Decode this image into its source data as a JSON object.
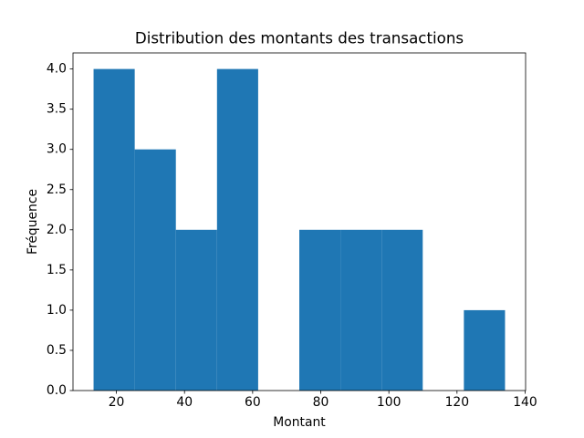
{
  "chart_data": {
    "type": "histogram",
    "title": "Distribution des montants des transactions",
    "xlabel": "Montant",
    "ylabel": "Fréquence",
    "bins": [
      13.3,
      25.38,
      37.46,
      49.54,
      61.62,
      73.7,
      85.78,
      97.86,
      109.94,
      122.02,
      134.1
    ],
    "counts": [
      4,
      3,
      2,
      4,
      0,
      2,
      2,
      2,
      0,
      1
    ],
    "color": "#1f77b4",
    "xlim": [
      7.26,
      140.14
    ],
    "xticks": [
      20,
      40,
      60,
      80,
      100,
      120,
      140
    ],
    "ylim": [
      0,
      4.2
    ],
    "yticks": [
      {
        "value": 0,
        "label": "0.0"
      },
      {
        "value": 0.5,
        "label": "0.5"
      },
      {
        "value": 1,
        "label": "1.0"
      },
      {
        "value": 1.5,
        "label": "1.5"
      },
      {
        "value": 2,
        "label": "2.0"
      },
      {
        "value": 2.5,
        "label": "2.5"
      },
      {
        "value": 3,
        "label": "3.0"
      },
      {
        "value": 3.5,
        "label": "3.5"
      },
      {
        "value": 4,
        "label": "4.0"
      }
    ],
    "grid": false
  }
}
